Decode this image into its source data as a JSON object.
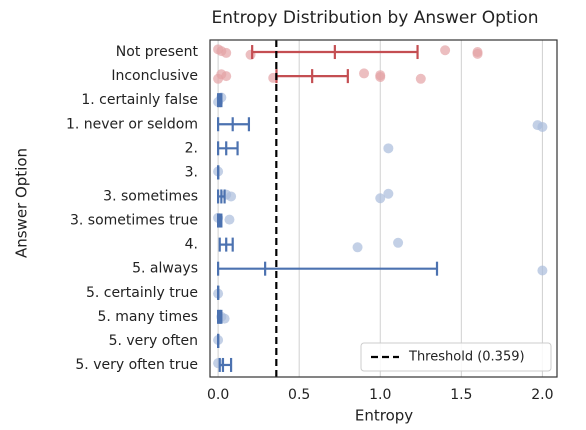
{
  "chart_data": {
    "type": "errorbar",
    "title": "Entropy Distribution by Answer Option",
    "xlabel": "Entropy",
    "ylabel": "Answer Option",
    "categories": [
      "Not present",
      "Inconclusive",
      "1. certainly false",
      "1. never or seldom",
      "2.",
      "3.",
      "3. sometimes",
      "3. sometimes true",
      "4.",
      "5. always",
      "5. certainly true",
      "5. many times",
      "5. very often",
      "5. very often true"
    ],
    "means": [
      0.72,
      0.58,
      0.01,
      0.09,
      0.05,
      0,
      0.02,
      0.01,
      0.05,
      0.29,
      0,
      0.01,
      0,
      0.03
    ],
    "lower": [
      0.21,
      0.36,
      0,
      0,
      0,
      0,
      0,
      0,
      0.01,
      0,
      0,
      0,
      0,
      0.01
    ],
    "upper": [
      1.23,
      0.8,
      0.02,
      0.19,
      0.12,
      0,
      0.04,
      0.02,
      0.09,
      1.35,
      0,
      0.02,
      0,
      0.08
    ],
    "colors": [
      "#c44e52",
      "#c44e52",
      "#4c72b0",
      "#4c72b0",
      "#4c72b0",
      "#4c72b0",
      "#4c72b0",
      "#4c72b0",
      "#4c72b0",
      "#4c72b0",
      "#4c72b0",
      "#4c72b0",
      "#4c72b0",
      "#4c72b0"
    ],
    "point_colors": [
      "#e4a3a5",
      "#e4a3a5",
      "#a9bcdc",
      "#a9bcdc",
      "#a9bcdc",
      "#a9bcdc",
      "#a9bcdc",
      "#a9bcdc",
      "#a9bcdc",
      "#a9bcdc",
      "#a9bcdc",
      "#a9bcdc",
      "#a9bcdc",
      "#a9bcdc"
    ],
    "points": [
      [
        0,
        0.02,
        0.05,
        0.2,
        1.4,
        1.6,
        1.6
      ],
      [
        0,
        0.02,
        0.05,
        0.34,
        0.9,
        1.0,
        1.0,
        1.25
      ],
      [
        0,
        0.02
      ],
      [
        1.97,
        2.0
      ],
      [
        1.05
      ],
      [
        0
      ],
      [
        0.05,
        0.08,
        1.0,
        1.05
      ],
      [
        0,
        0.07
      ],
      [
        0.86,
        1.11
      ],
      [
        2.0
      ],
      [
        0
      ],
      [
        0.02,
        0.04
      ],
      [
        0
      ],
      [
        0
      ]
    ],
    "threshold": 0.359,
    "threshold_label": "Threshold (0.359)",
    "xlim": [
      -0.05,
      2.09
    ],
    "xticks": [
      {
        "value": 0,
        "label": "0.0"
      },
      {
        "value": 0.5,
        "label": "0.5"
      },
      {
        "value": 1,
        "label": "1.0"
      },
      {
        "value": 1.5,
        "label": "1.5"
      },
      {
        "value": 2,
        "label": "2.0"
      }
    ],
    "grid": true,
    "legend": "lower right"
  }
}
